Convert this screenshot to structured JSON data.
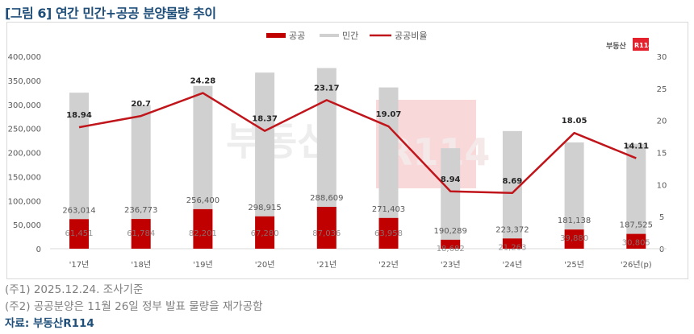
{
  "title": "[그림 6] 연간 민간+공공 분양물량 추이",
  "legend": {
    "public": "공공",
    "private": "민간",
    "ratio": "공공비율"
  },
  "logo": {
    "text": "부동산",
    "badge": "R114"
  },
  "watermark": {
    "text": "부동산",
    "badge": "R114"
  },
  "notes": [
    "(주1) 2025.12.24. 조사기준",
    "(주2) 공공분양은 11월 26일 정부 발표 물량을 재가공함"
  ],
  "source": "자료: 부동산R114",
  "colors": {
    "public": "#c00000",
    "private": "#d0d0d0",
    "ratio_line": "#c0151b",
    "title": "#1f4e79",
    "axis_text": "#595959"
  },
  "chart_data": {
    "type": "bar",
    "subtype": "stacked bar + line (dual axis)",
    "title": "[그림 6] 연간 민간+공공 분양물량 추이",
    "xlabel": "",
    "ylabel": "",
    "categories": [
      "'17년",
      "'18년",
      "'19년",
      "'20년",
      "'21년",
      "'22년",
      "'23년",
      "'24년",
      "'25년",
      "'26년(p)"
    ],
    "series": [
      {
        "name": "공공",
        "type": "bar",
        "axis": "left",
        "values": [
          61451,
          61784,
          82201,
          67280,
          87036,
          63958,
          18682,
          21263,
          39880,
          30805
        ]
      },
      {
        "name": "민간",
        "type": "bar",
        "axis": "left",
        "values": [
          263014,
          236773,
          256400,
          298915,
          288609,
          271403,
          190289,
          223372,
          181138,
          187525
        ]
      },
      {
        "name": "공공비율",
        "type": "line",
        "axis": "right",
        "values": [
          18.94,
          20.7,
          24.28,
          18.37,
          23.17,
          19.07,
          8.94,
          8.69,
          18.05,
          14.11
        ]
      }
    ],
    "ylim": [
      0,
      400000
    ],
    "y_ticks": [
      "0",
      "50,000",
      "100,000",
      "150,000",
      "200,000",
      "250,000",
      "300,000",
      "350,000",
      "400,000"
    ],
    "y2lim": [
      0,
      30
    ],
    "y2_ticks": [
      "0",
      "5",
      "10",
      "15",
      "20",
      "25",
      "30"
    ],
    "grid": false,
    "legend_position": "top"
  }
}
